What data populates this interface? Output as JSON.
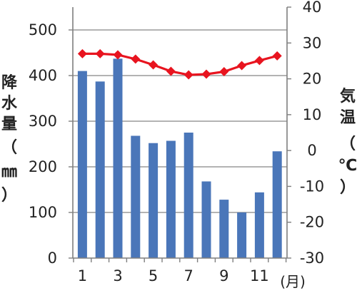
{
  "chart_data": {
    "type": "bar",
    "categories": [
      "1",
      "2",
      "3",
      "4",
      "5",
      "6",
      "7",
      "8",
      "9",
      "10",
      "11",
      "12"
    ],
    "x_tick_labels": [
      "1",
      "3",
      "5",
      "7",
      "9",
      "11"
    ],
    "x_tick_months": [
      1,
      3,
      5,
      7,
      9,
      11
    ],
    "x_unit": "(月)",
    "left_axis": {
      "label_chars": [
        "降",
        "水",
        "量",
        "（",
        "㎜",
        "）"
      ],
      "ylim": [
        0,
        550
      ],
      "ticks": [
        0,
        100,
        200,
        300,
        400,
        500
      ],
      "tick_labels": [
        "0",
        "100",
        "200",
        "300",
        "400",
        "500"
      ]
    },
    "right_axis": {
      "label_chars": [
        "気",
        "温",
        "（",
        "℃",
        "）"
      ],
      "ylim": [
        -30,
        40
      ],
      "ticks": [
        -30,
        -20,
        -10,
        0,
        10,
        20,
        30,
        40
      ],
      "tick_labels": [
        "-30",
        "-20",
        "-10",
        "0",
        "10",
        "20",
        "30",
        "40"
      ]
    },
    "series": [
      {
        "type": "bar",
        "axis": "left",
        "color": "#4a76b9",
        "values": [
          410,
          387,
          437,
          268,
          252,
          257,
          275,
          168,
          128,
          100,
          144,
          234
        ]
      },
      {
        "type": "line",
        "axis": "right",
        "color": "#e8141f",
        "values": [
          27.0,
          27.0,
          26.7,
          25.5,
          23.9,
          22.1,
          21.1,
          21.3,
          22.0,
          23.7,
          25.1,
          26.4
        ]
      }
    ],
    "grid": "horizontal",
    "legend": "none"
  }
}
